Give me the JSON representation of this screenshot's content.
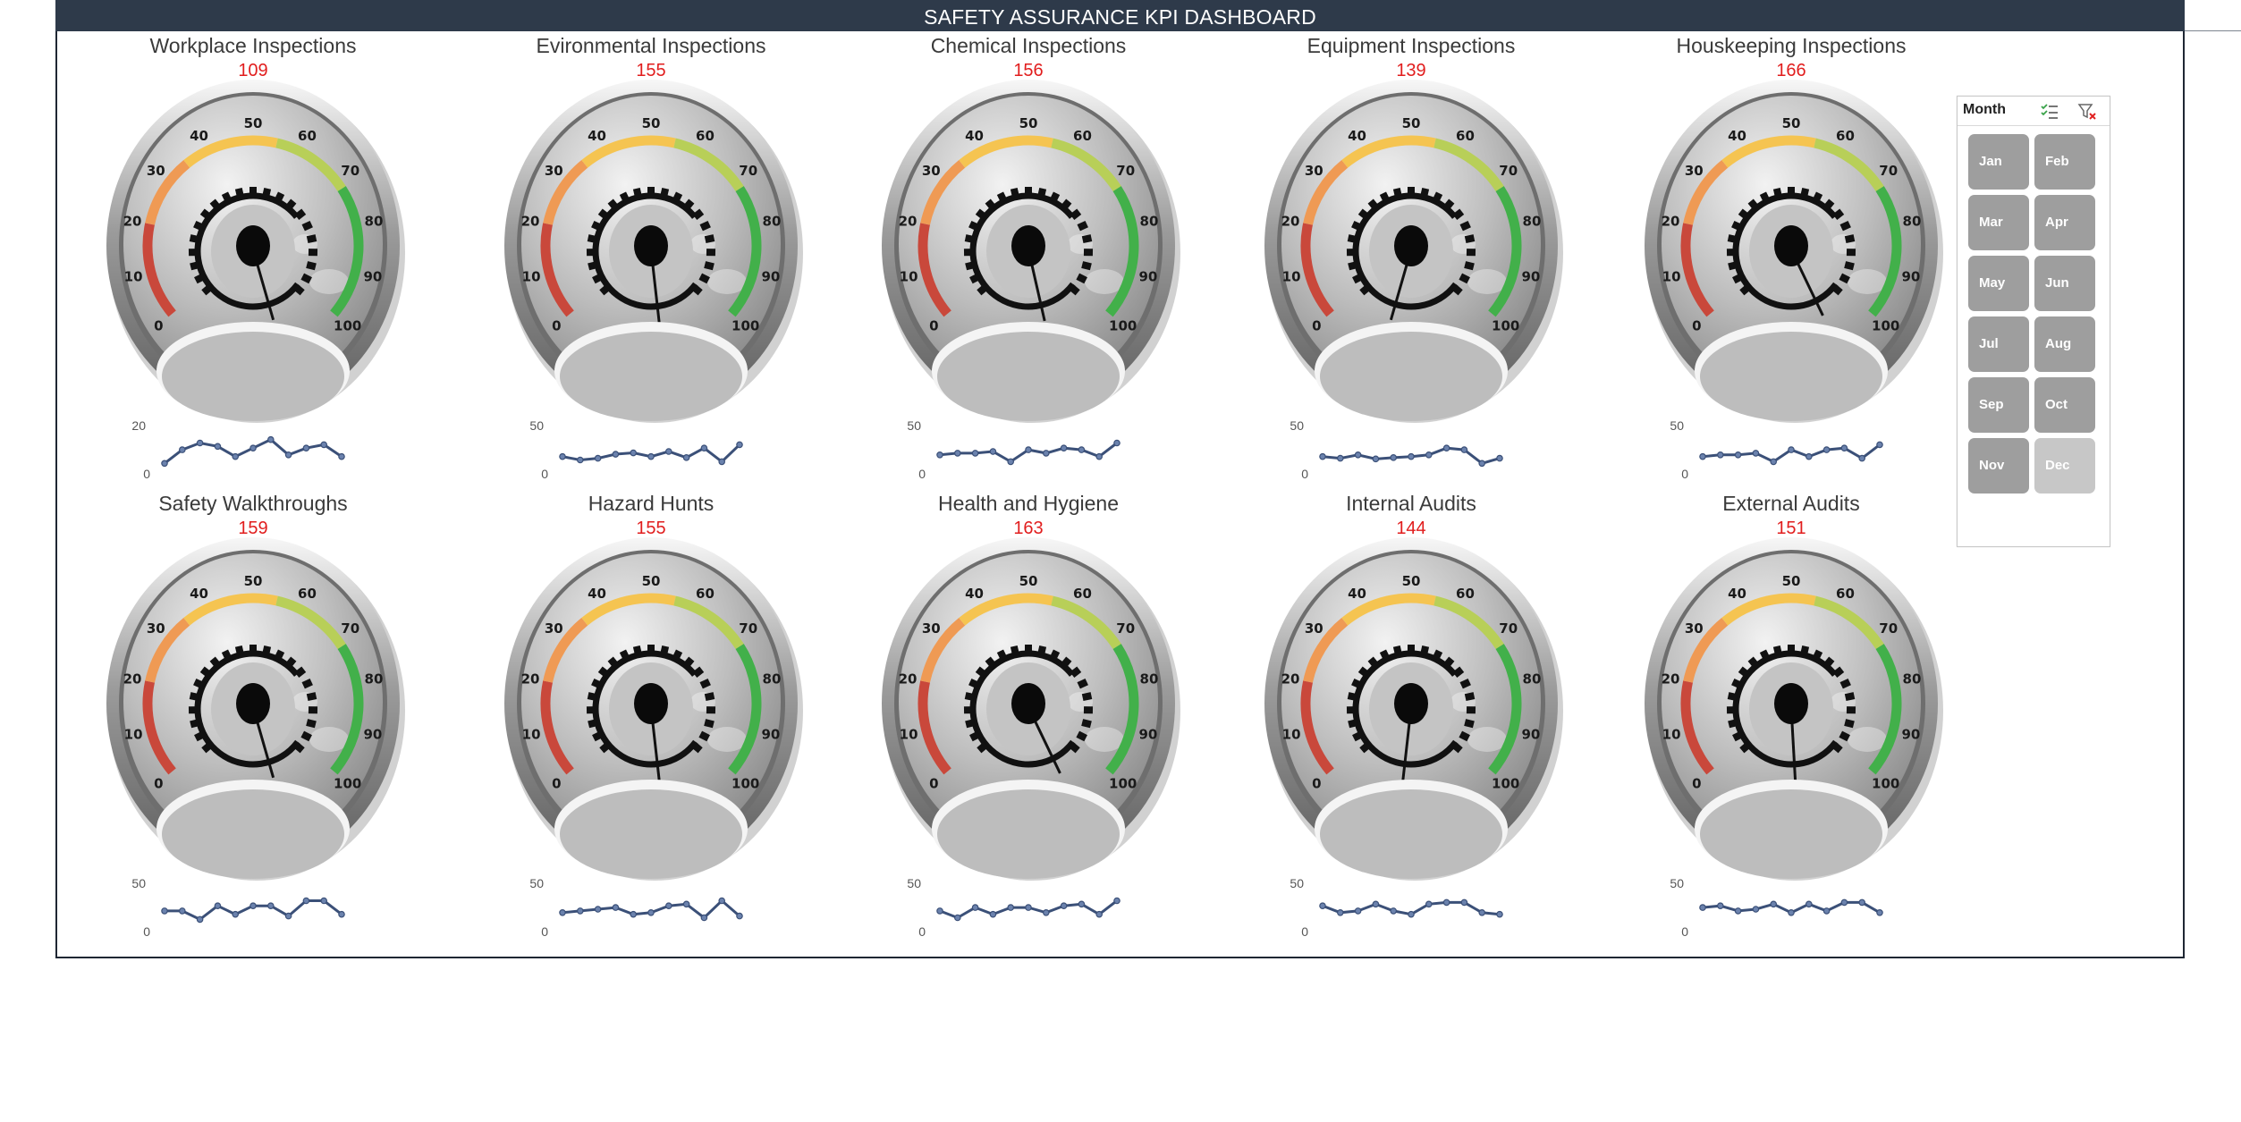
{
  "dashboard": {
    "title": "SAFETY ASSURANCE KPI DASHBOARD"
  },
  "gauge_scale": [
    "0",
    "10",
    "20",
    "30",
    "40",
    "50",
    "60",
    "70",
    "80",
    "90",
    "100"
  ],
  "kpis": [
    {
      "title": "Workplace Inspections",
      "value": "109",
      "needle": 55,
      "spark_max": "20",
      "spark_min": "0",
      "spark": [
        0.15,
        0.55,
        0.75,
        0.65,
        0.35,
        0.6,
        0.85,
        0.4,
        0.6,
        0.7,
        0.35
      ]
    },
    {
      "title": "Evironmental Inspections",
      "value": "155",
      "needle": 52,
      "spark_max": "50",
      "spark_min": "0",
      "spark": [
        0.35,
        0.25,
        0.3,
        0.42,
        0.46,
        0.35,
        0.5,
        0.32,
        0.6,
        0.2,
        0.7
      ]
    },
    {
      "title": "Chemical Inspections",
      "value": "156",
      "needle": 54,
      "spark_max": "50",
      "spark_min": "0",
      "spark": [
        0.4,
        0.45,
        0.45,
        0.5,
        0.2,
        0.55,
        0.45,
        0.6,
        0.55,
        0.35,
        0.75
      ]
    },
    {
      "title": "Equipment Inspections",
      "value": "139",
      "needle": 45,
      "spark_max": "50",
      "spark_min": "0",
      "spark": [
        0.35,
        0.3,
        0.4,
        0.28,
        0.32,
        0.35,
        0.4,
        0.6,
        0.55,
        0.15,
        0.3
      ]
    },
    {
      "title": "Houskeeping Inspections",
      "value": "166",
      "needle": 58,
      "spark_max": "50",
      "spark_min": "0",
      "spark": [
        0.35,
        0.4,
        0.4,
        0.45,
        0.2,
        0.55,
        0.35,
        0.55,
        0.6,
        0.3,
        0.7
      ]
    },
    {
      "title": "Safety Walkthroughs",
      "value": "159",
      "needle": 55,
      "spark_max": "50",
      "spark_min": "0",
      "spark": [
        0.45,
        0.45,
        0.2,
        0.6,
        0.35,
        0.6,
        0.6,
        0.3,
        0.75,
        0.75,
        0.35
      ]
    },
    {
      "title": "Hazard Hunts",
      "value": "155",
      "needle": 52,
      "spark_max": "50",
      "spark_min": "0",
      "spark": [
        0.4,
        0.45,
        0.5,
        0.55,
        0.35,
        0.4,
        0.6,
        0.65,
        0.25,
        0.75,
        0.3
      ]
    },
    {
      "title": "Health and Hygiene",
      "value": "163",
      "needle": 58,
      "spark_max": "50",
      "spark_min": "0",
      "spark": [
        0.45,
        0.25,
        0.55,
        0.35,
        0.55,
        0.55,
        0.4,
        0.6,
        0.65,
        0.35,
        0.75
      ]
    },
    {
      "title": "Internal Audits",
      "value": "144",
      "needle": 48,
      "spark_max": "50",
      "spark_min": "0",
      "spark": [
        0.6,
        0.4,
        0.45,
        0.65,
        0.45,
        0.35,
        0.65,
        0.7,
        0.7,
        0.4,
        0.35
      ]
    },
    {
      "title": "External Audits",
      "value": "151",
      "needle": 51,
      "spark_max": "50",
      "spark_min": "0",
      "spark": [
        0.55,
        0.6,
        0.45,
        0.5,
        0.65,
        0.4,
        0.65,
        0.45,
        0.7,
        0.7,
        0.4
      ]
    }
  ],
  "slicer": {
    "title": "Month",
    "multi_select_icon": "multi-select-icon",
    "clear_filter_icon": "clear-filter-icon",
    "months": [
      {
        "label": "Jan",
        "style": "normal"
      },
      {
        "label": "Feb",
        "style": "normal"
      },
      {
        "label": "Mar",
        "style": "normal"
      },
      {
        "label": "Apr",
        "style": "normal"
      },
      {
        "label": "May",
        "style": "normal"
      },
      {
        "label": "Jun",
        "style": "normal"
      },
      {
        "label": "Jul",
        "style": "normal"
      },
      {
        "label": "Aug",
        "style": "normal"
      },
      {
        "label": "Sep",
        "style": "normal"
      },
      {
        "label": "Oct",
        "style": "normal"
      },
      {
        "label": "Nov",
        "style": "normal"
      },
      {
        "label": "Dec",
        "style": "light"
      }
    ]
  },
  "colors": {
    "header_bg": "#2e3a4a",
    "value_red": "#e11d1d",
    "spark_line": "#3b5078",
    "arc_red": "#c9483b",
    "arc_orange": "#ef9a54",
    "arc_yellow": "#f5c451",
    "arc_green": "#42b04a"
  }
}
